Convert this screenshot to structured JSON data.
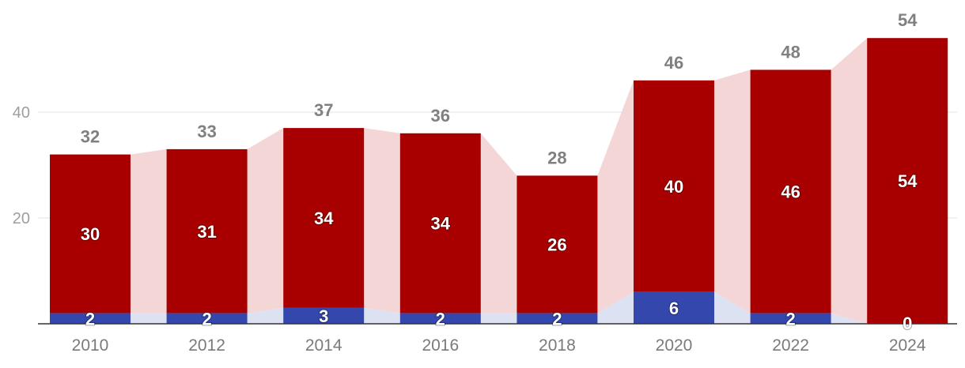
{
  "chart_data": {
    "type": "bar",
    "stacked": true,
    "categories": [
      "2010",
      "2012",
      "2014",
      "2016",
      "2018",
      "2020",
      "2022",
      "2024"
    ],
    "series": [
      {
        "values": [
          2,
          2,
          3,
          2,
          2,
          6,
          2,
          0
        ],
        "color": "#3347ad"
      },
      {
        "values": [
          30,
          31,
          34,
          34,
          26,
          40,
          46,
          54
        ],
        "color": "#a80000"
      }
    ],
    "totals": [
      32,
      33,
      37,
      36,
      28,
      46,
      48,
      54
    ],
    "connector_colors": [
      "#dde2f2",
      "#f4d6d6"
    ],
    "ylim": [
      0,
      54
    ],
    "yticks": [
      20,
      40
    ],
    "grid": true,
    "legend": "none",
    "title": "",
    "xlabel": "",
    "ylabel": ""
  }
}
